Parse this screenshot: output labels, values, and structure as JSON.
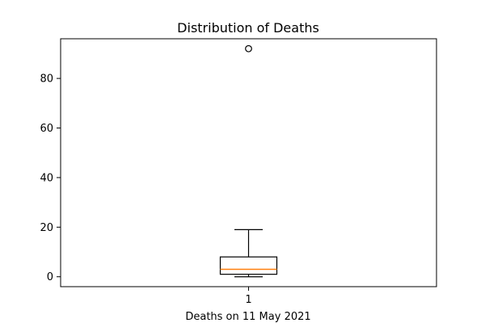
{
  "chart_data": {
    "type": "boxplot",
    "title": "Distribution of Deaths",
    "xlabel": "Deaths on 11 May 2021",
    "ylabel": "",
    "categories": [
      "1"
    ],
    "ylim": [
      -4,
      96
    ],
    "yticks": [
      0,
      20,
      40,
      60,
      80
    ],
    "grid": false,
    "legend": "none",
    "boxes": [
      {
        "label": "1",
        "whisker_low": 0,
        "q1": 1,
        "median": 3,
        "q3": 8,
        "whisker_high": 19,
        "outliers": [
          92
        ]
      }
    ],
    "colors": {
      "box": "#000000",
      "median": "#ff7f0e",
      "outlier": "#000000"
    }
  }
}
